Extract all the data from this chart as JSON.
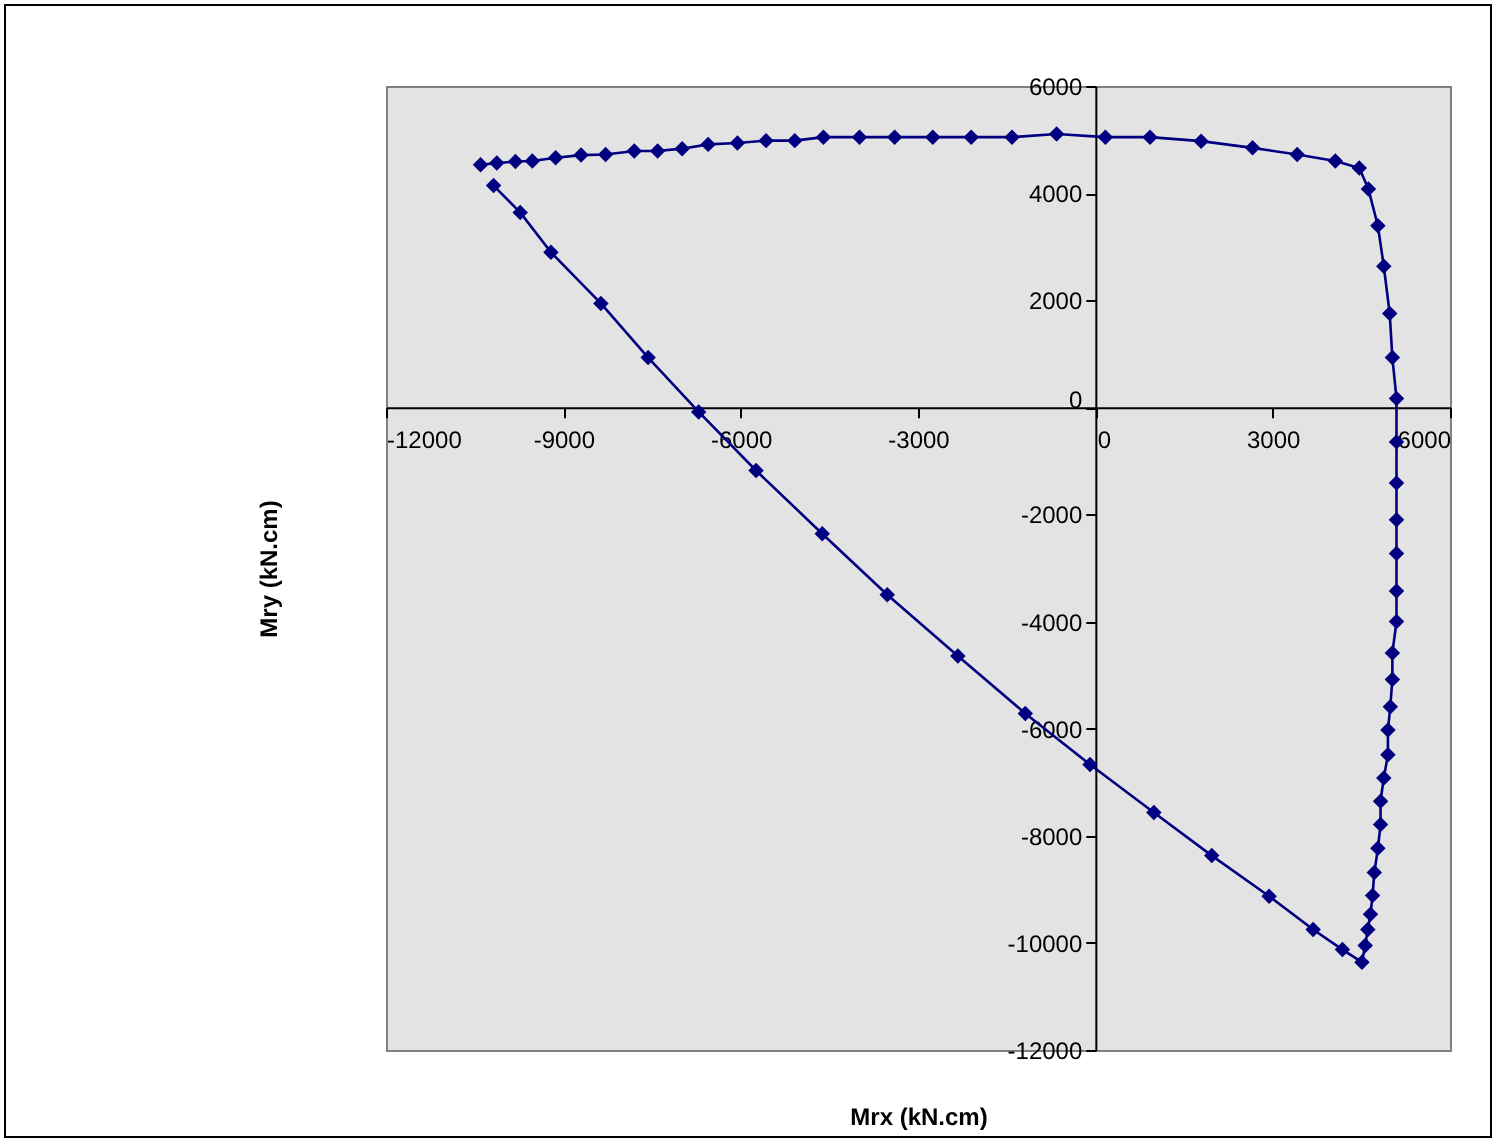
{
  "chart_data": {
    "type": "line",
    "xlabel": "Mrx (kN.cm)",
    "ylabel": "Mry (kN.cm)",
    "xlim": [
      -12000,
      6000
    ],
    "ylim": [
      -12000,
      6000
    ],
    "xticks": [
      -12000,
      -9000,
      -6000,
      -3000,
      0,
      3000,
      6000
    ],
    "yticks": [
      -12000,
      -10000,
      -8000,
      -6000,
      -4000,
      -2000,
      0,
      2000,
      4000,
      6000
    ],
    "grid": false,
    "legend": false,
    "marker": "diamond",
    "line_style": "solid",
    "series": [
      {
        "color": "#000080",
        "x": [
          -10400,
          -10125,
          -9810,
          -9525,
          -9130,
          -8700,
          -8285,
          -7800,
          -7405,
          -6990,
          -6550,
          -6055,
          -5570,
          -5085,
          -4600,
          -3990,
          -3395,
          -2750,
          -2100,
          -1410,
          -655,
          170,
          925,
          1790,
          2660,
          3415,
          4060,
          4465,
          4620,
          4780,
          4880,
          4980,
          5025,
          5095,
          5095,
          5095,
          5095,
          5095,
          5095,
          5095,
          5025,
          5025,
          4990,
          4950,
          4950,
          4880,
          4825,
          4825,
          4780,
          4720,
          4690,
          4655,
          4610,
          4565,
          4510,
          4180,
          3685,
          2940,
          1970,
          990,
          -90,
          -1185,
          -2325,
          -3520,
          -4620,
          -5740,
          -6710,
          -7565,
          -8365,
          -9210,
          -9730,
          -10180
        ],
        "values": [
          4530,
          4560,
          4590,
          4600,
          4660,
          4710,
          4720,
          4785,
          4785,
          4830,
          4910,
          4935,
          4980,
          4980,
          5045,
          5045,
          5045,
          5045,
          5045,
          5045,
          5105,
          5045,
          5045,
          4970,
          4845,
          4720,
          4600,
          4470,
          4075,
          3390,
          2635,
          1750,
          930,
          165,
          -645,
          -1415,
          -2100,
          -2730,
          -3430,
          -4000,
          -4585,
          -5080,
          -5590,
          -6025,
          -6485,
          -6920,
          -7355,
          -7790,
          -8235,
          -8685,
          -9115,
          -9465,
          -9750,
          -10050,
          -10360,
          -10125,
          -9750,
          -9130,
          -8370,
          -7565,
          -6670,
          -5715,
          -4645,
          -3500,
          -2360,
          -1180,
          -85,
          930,
          1940,
          2895,
          3640,
          4140
        ]
      }
    ]
  }
}
